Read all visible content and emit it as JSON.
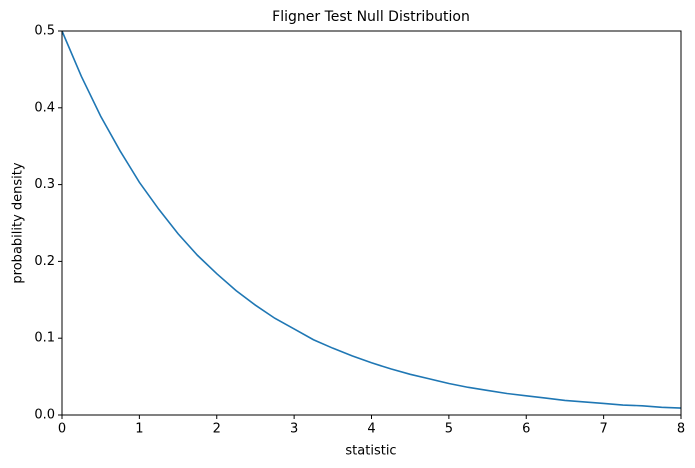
{
  "chart_data": {
    "type": "line",
    "title": "Fligner Test Null Distribution",
    "x_label": "statistic",
    "y_label": "probability density",
    "x": [
      0,
      0.25,
      0.5,
      0.75,
      1,
      1.25,
      1.5,
      1.75,
      2,
      2.25,
      2.5,
      2.75,
      3,
      3.25,
      3.5,
      3.75,
      4,
      4.25,
      4.5,
      4.75,
      5,
      5.25,
      5.5,
      5.75,
      6,
      6.25,
      6.5,
      6.75,
      7,
      7.25,
      7.5,
      7.75,
      8
    ],
    "series": [
      {
        "name": "density",
        "color": "#1f77b4",
        "values": [
          0.5,
          0.441,
          0.389,
          0.344,
          0.303,
          0.268,
          0.236,
          0.208,
          0.184,
          0.162,
          0.143,
          0.126,
          0.112,
          0.098,
          0.087,
          0.077,
          0.068,
          0.06,
          0.053,
          0.047,
          0.041,
          0.036,
          0.032,
          0.028,
          0.025,
          0.022,
          0.019,
          0.017,
          0.015,
          0.013,
          0.012,
          0.01,
          0.009
        ]
      }
    ],
    "xlim": [
      0,
      8
    ],
    "ylim": [
      0,
      0.5
    ],
    "xticks": [
      0,
      1,
      2,
      3,
      4,
      5,
      6,
      7,
      8
    ],
    "yticks": [
      {
        "value": 0,
        "label": "0.0"
      },
      {
        "value": 0.1,
        "label": "0.1"
      },
      {
        "value": 0.2,
        "label": "0.2"
      },
      {
        "value": 0.3,
        "label": "0.3"
      },
      {
        "value": 0.4,
        "label": "0.4"
      },
      {
        "value": 0.5,
        "label": "0.5"
      }
    ],
    "grid": false
  }
}
